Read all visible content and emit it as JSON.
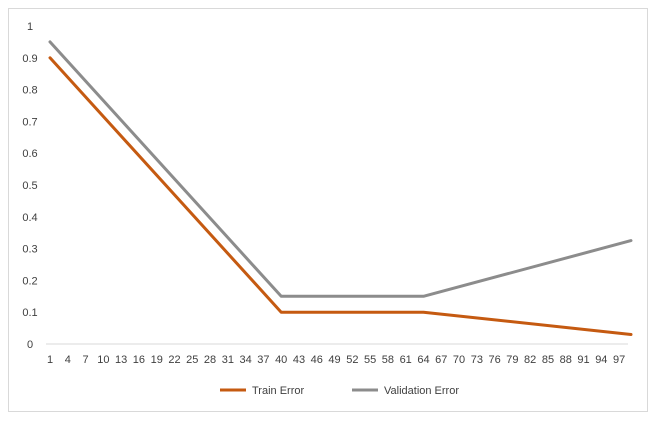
{
  "chart_data": {
    "type": "line",
    "title": "",
    "xlabel": "",
    "ylabel": "",
    "ylim": [
      0,
      1
    ],
    "y_ticks": [
      "0",
      "0.1",
      "0.2",
      "0.3",
      "0.4",
      "0.5",
      "0.6",
      "0.7",
      "0.8",
      "0.9",
      "1"
    ],
    "x_tick_labels": [
      "1",
      "4",
      "7",
      "10",
      "13",
      "16",
      "19",
      "22",
      "25",
      "28",
      "31",
      "34",
      "37",
      "40",
      "43",
      "46",
      "49",
      "52",
      "55",
      "58",
      "61",
      "64",
      "67",
      "70",
      "73",
      "76",
      "79",
      "82",
      "85",
      "88",
      "91",
      "94",
      "97"
    ],
    "x_range": [
      1,
      99
    ],
    "grid": false,
    "legend_position": "bottom",
    "series": [
      {
        "name": "Train Error",
        "color": "#c55a11",
        "points": [
          [
            1,
            0.9
          ],
          [
            40,
            0.1
          ],
          [
            64,
            0.1
          ],
          [
            99,
            0.03
          ]
        ]
      },
      {
        "name": "Validation Error",
        "color": "#8c8c8c",
        "points": [
          [
            1,
            0.95
          ],
          [
            40,
            0.15
          ],
          [
            64,
            0.15
          ],
          [
            99,
            0.325
          ]
        ]
      }
    ]
  }
}
